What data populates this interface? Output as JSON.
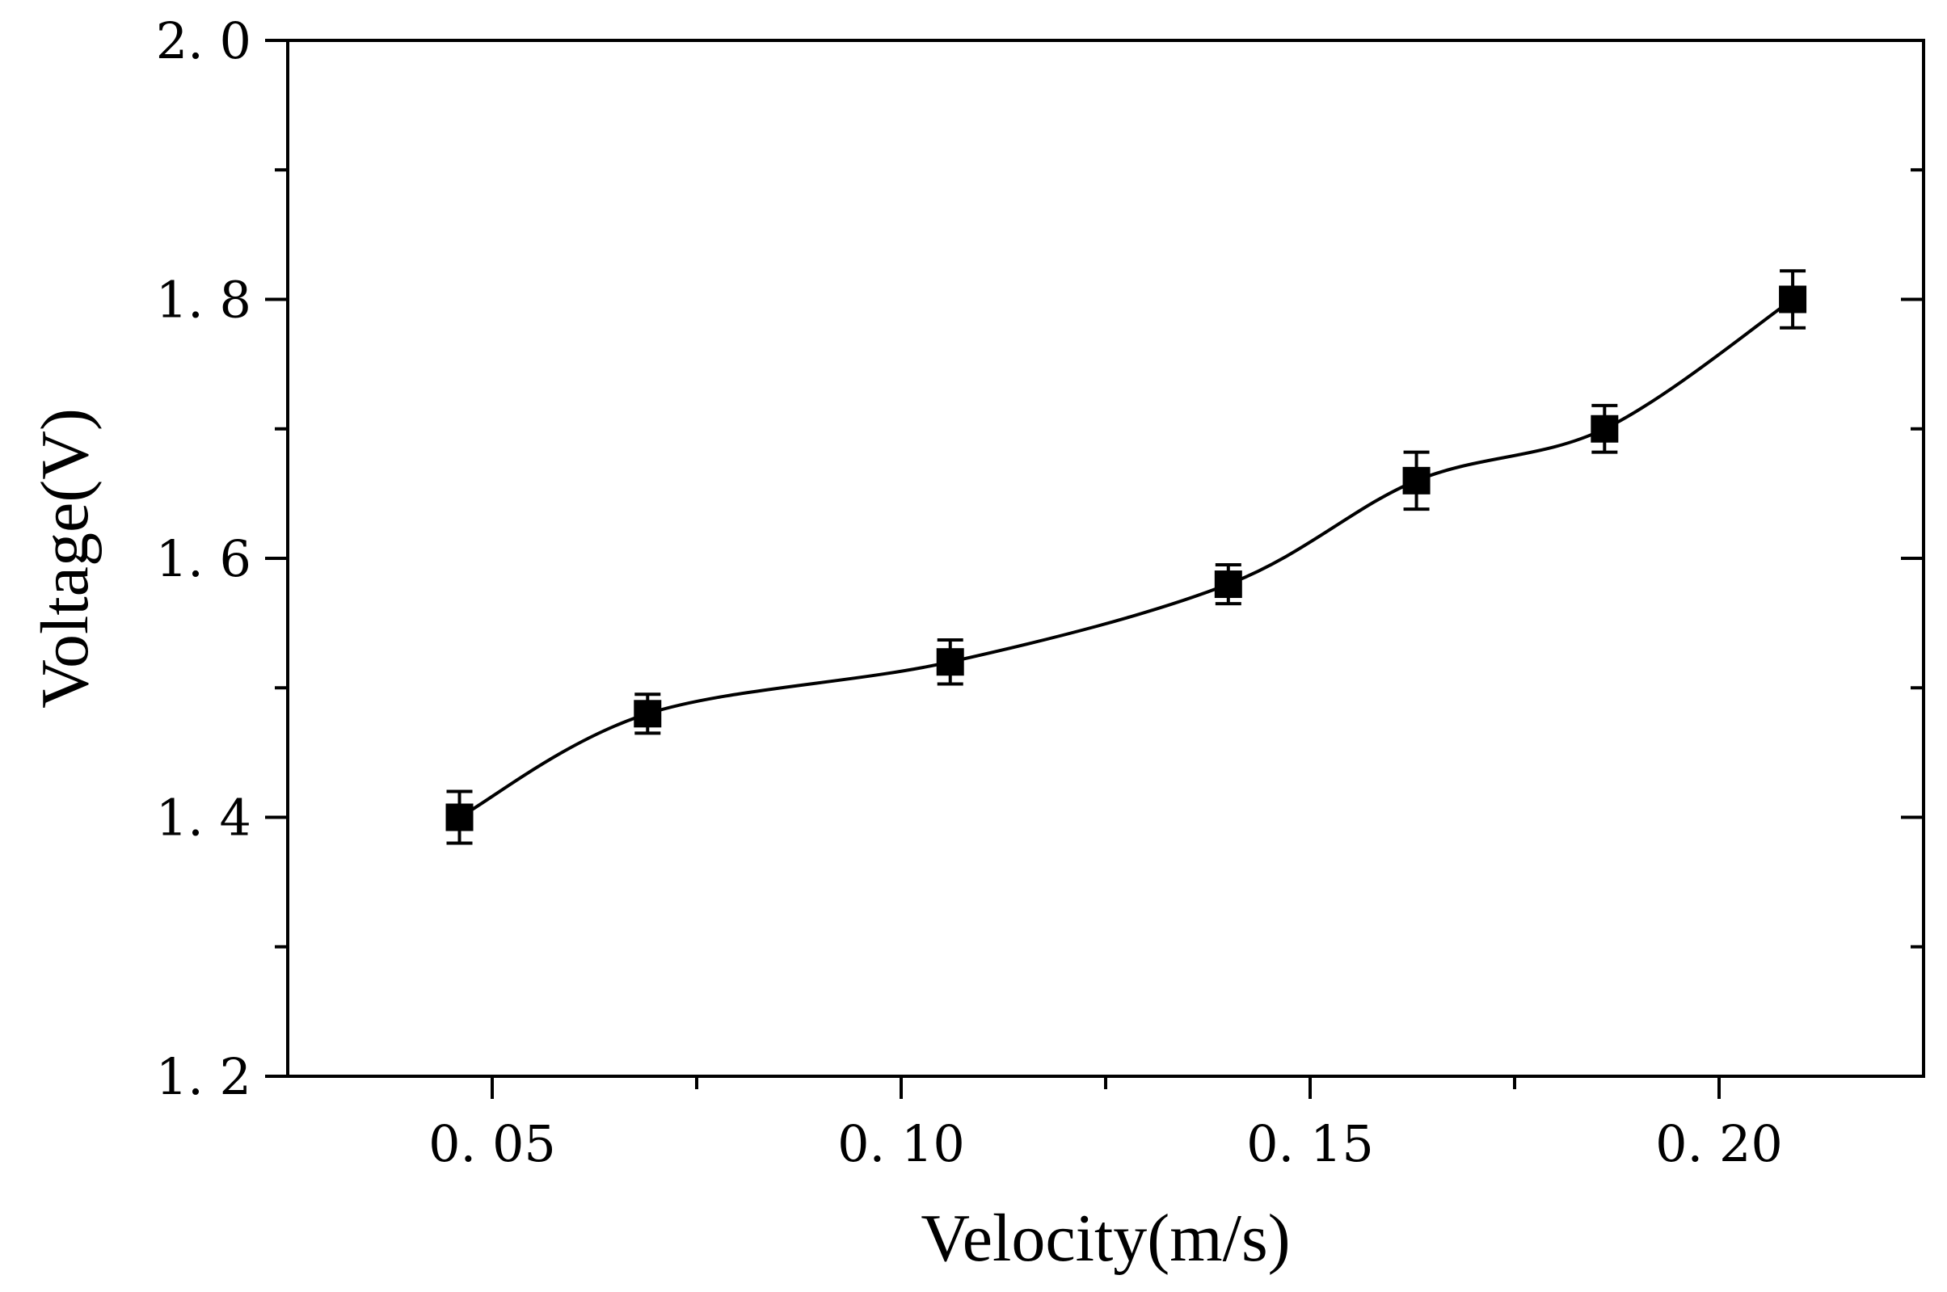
{
  "chart_data": {
    "type": "line",
    "title": "",
    "xlabel": "Velocity(m/s)",
    "ylabel": "Voltage(V)",
    "xlim": [
      0.025,
      0.225
    ],
    "ylim": [
      1.2,
      2.0
    ],
    "grid": false,
    "x_ticks": [
      {
        "value": 0.05,
        "label": "0. 05"
      },
      {
        "value": 0.1,
        "label": "0. 10"
      },
      {
        "value": 0.15,
        "label": "0. 15"
      },
      {
        "value": 0.2,
        "label": "0. 20"
      }
    ],
    "x_minor_ticks": [
      0.075,
      0.125,
      0.175
    ],
    "y_ticks": [
      {
        "value": 1.2,
        "label": "1. 2"
      },
      {
        "value": 1.4,
        "label": "1. 4"
      },
      {
        "value": 1.6,
        "label": "1. 6"
      },
      {
        "value": 1.8,
        "label": "1. 8"
      },
      {
        "value": 2.0,
        "label": "2. 0"
      }
    ],
    "y_minor_ticks": [
      1.3,
      1.5,
      1.7,
      1.9
    ],
    "series": [
      {
        "name": "Voltage",
        "color": "#000000",
        "marker": "square",
        "smooth": true,
        "points": [
          {
            "x": 0.046,
            "y": 1.4,
            "err": 0.02
          },
          {
            "x": 0.069,
            "y": 1.48,
            "err": 0.015
          },
          {
            "x": 0.106,
            "y": 1.52,
            "err": 0.017
          },
          {
            "x": 0.14,
            "y": 1.58,
            "err": 0.015
          },
          {
            "x": 0.163,
            "y": 1.66,
            "err": 0.022
          },
          {
            "x": 0.186,
            "y": 1.7,
            "err": 0.018
          },
          {
            "x": 0.209,
            "y": 1.8,
            "err": 0.022
          }
        ]
      }
    ]
  }
}
